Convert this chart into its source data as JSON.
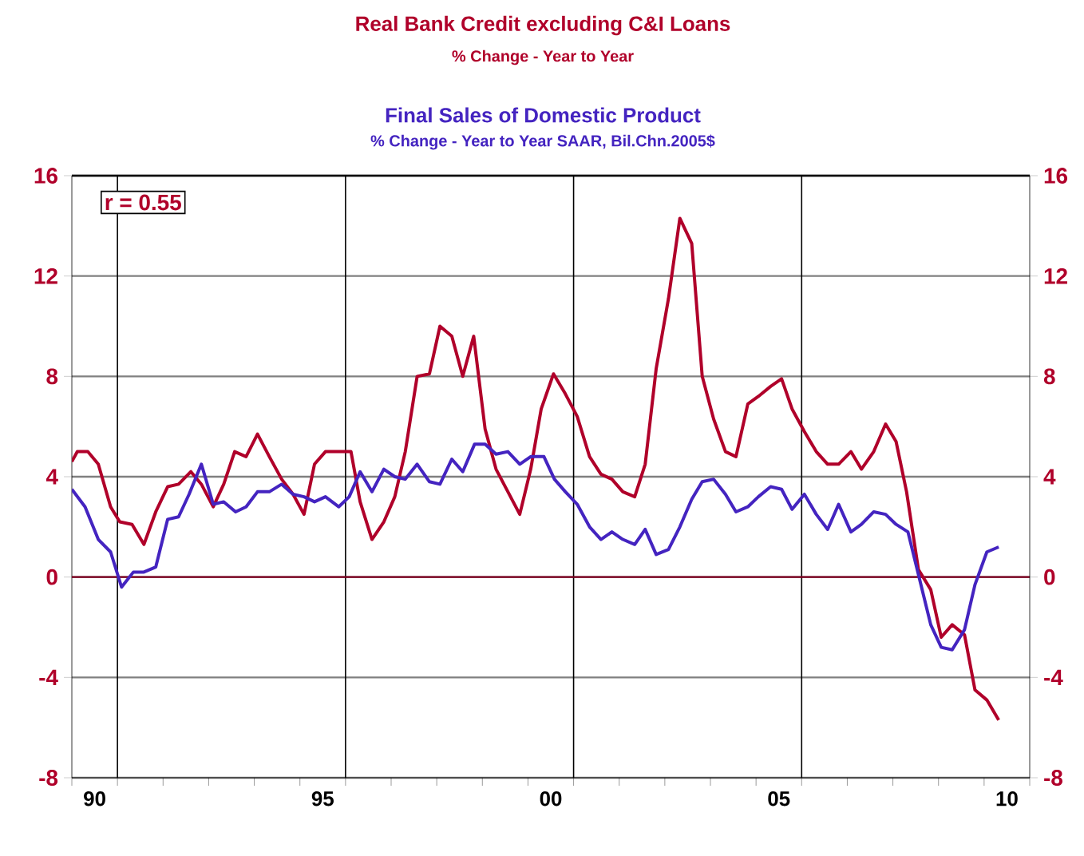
{
  "chart_data": {
    "type": "line",
    "series": [
      {
        "name": "Real Bank Credit excluding C&I Loans",
        "color": "#b0002a",
        "x": [
          1989.5,
          1989.62,
          1989.85,
          1990.08,
          1990.35,
          1990.55,
          1990.82,
          1991.08,
          1991.34,
          1991.6,
          1991.84,
          1992.11,
          1992.34,
          1992.6,
          1992.83,
          1993.07,
          1993.32,
          1993.57,
          1993.83,
          1994.1,
          1994.35,
          1994.59,
          1994.82,
          1995.06,
          1995.35,
          1995.62,
          1995.82,
          1996.08,
          1996.34,
          1996.58,
          1996.81,
          1997.07,
          1997.34,
          1997.57,
          1997.83,
          1998.07,
          1998.31,
          1998.56,
          1998.8,
          1999.06,
          1999.32,
          1999.56,
          1999.79,
          2000.06,
          2000.32,
          2000.58,
          2000.85,
          2001.1,
          2001.34,
          2001.58,
          2001.84,
          2002.07,
          2002.31,
          2002.58,
          2002.83,
          2003.09,
          2003.32,
          2003.57,
          2003.83,
          2004.06,
          2004.32,
          2004.55,
          2004.82,
          2005.06,
          2005.29,
          2005.56,
          2005.82,
          2006.07,
          2006.31,
          2006.58,
          2006.81,
          2007.08,
          2007.34,
          2007.57,
          2007.8,
          2008.06,
          2008.33,
          2008.56,
          2008.8,
          2009.07,
          2009.3,
          2009.56,
          2009.82
        ],
        "values": [
          4.6,
          5.0,
          5.0,
          4.5,
          2.8,
          2.2,
          2.1,
          1.3,
          2.6,
          3.6,
          3.7,
          4.2,
          3.7,
          2.8,
          3.7,
          5.0,
          4.8,
          5.7,
          4.8,
          3.9,
          3.3,
          2.5,
          4.5,
          5.0,
          5.0,
          5.0,
          3.0,
          1.5,
          2.2,
          3.2,
          5.0,
          8.0,
          8.1,
          10.0,
          9.6,
          8.0,
          9.6,
          5.9,
          4.3,
          3.4,
          2.5,
          4.3,
          6.7,
          8.1,
          7.3,
          6.4,
          4.8,
          4.1,
          3.9,
          3.4,
          3.2,
          4.5,
          8.3,
          11.1,
          14.3,
          13.3,
          8.0,
          6.3,
          5.0,
          4.8,
          6.9,
          7.2,
          7.6,
          7.9,
          6.7,
          5.8,
          5.0,
          4.5,
          4.5,
          5.0,
          4.3,
          5.0,
          6.1,
          5.4,
          3.4,
          0.3,
          -0.5,
          -2.4,
          -1.9,
          -2.3,
          -4.5,
          -4.9,
          -5.7
        ]
      },
      {
        "name": "Final Sales of Domestic Product",
        "color": "#4424c0",
        "x": [
          1989.5,
          1989.79,
          1990.08,
          1990.35,
          1990.59,
          1990.85,
          1991.08,
          1991.34,
          1991.6,
          1991.84,
          1992.07,
          1992.34,
          1992.6,
          1992.83,
          1993.09,
          1993.32,
          1993.57,
          1993.83,
          1994.1,
          1994.35,
          1994.59,
          1994.82,
          1995.06,
          1995.35,
          1995.58,
          1995.82,
          1996.08,
          1996.34,
          1996.58,
          1996.81,
          1997.07,
          1997.34,
          1997.57,
          1997.83,
          1998.07,
          1998.33,
          1998.56,
          1998.8,
          1999.06,
          1999.32,
          1999.56,
          1999.85,
          2000.08,
          2000.32,
          2000.58,
          2000.85,
          2001.1,
          2001.34,
          2001.58,
          2001.84,
          2002.07,
          2002.31,
          2002.58,
          2002.83,
          2003.09,
          2003.32,
          2003.57,
          2003.83,
          2004.06,
          2004.32,
          2004.55,
          2004.82,
          2005.06,
          2005.29,
          2005.56,
          2005.82,
          2006.07,
          2006.31,
          2006.58,
          2006.81,
          2007.08,
          2007.34,
          2007.57,
          2007.83,
          2008.06,
          2008.33,
          2008.56,
          2008.8,
          2009.07,
          2009.3,
          2009.56,
          2009.82
        ],
        "values": [
          3.5,
          2.8,
          1.5,
          1.0,
          -0.4,
          0.2,
          0.2,
          0.4,
          2.3,
          2.4,
          3.3,
          4.5,
          2.9,
          3.0,
          2.6,
          2.8,
          3.4,
          3.4,
          3.7,
          3.3,
          3.2,
          3.0,
          3.2,
          2.8,
          3.2,
          4.2,
          3.4,
          4.3,
          4.0,
          3.9,
          4.5,
          3.8,
          3.7,
          4.7,
          4.2,
          5.3,
          5.3,
          4.9,
          5.0,
          4.5,
          4.8,
          4.8,
          3.9,
          3.4,
          2.9,
          2.0,
          1.5,
          1.8,
          1.5,
          1.3,
          1.9,
          0.9,
          1.1,
          2.0,
          3.1,
          3.8,
          3.9,
          3.3,
          2.6,
          2.8,
          3.2,
          3.6,
          3.5,
          2.7,
          3.3,
          2.5,
          1.9,
          2.9,
          1.8,
          2.1,
          2.6,
          2.5,
          2.1,
          1.8,
          0.1,
          -1.9,
          -2.8,
          -2.9,
          -2.1,
          -0.3,
          1.0,
          1.2
        ]
      }
    ],
    "annotations": [
      "% Change - Year to Year",
      "% Change - Year to Year     SAAR, Bil.Chn.2005$",
      "r = 0.55"
    ],
    "xlim": [
      1989.5,
      2010.5
    ],
    "xticks": [
      {
        "value": 1990,
        "label": "90"
      },
      {
        "value": 1995,
        "label": "95"
      },
      {
        "value": 2000,
        "label": "00"
      },
      {
        "value": 2005,
        "label": "05"
      },
      {
        "value": 2010,
        "label": "10"
      },
      {
        "value": 1989.5,
        "label": null
      },
      {
        "value": 1990.5,
        "label": null
      },
      {
        "value": 1991.5,
        "label": null
      },
      {
        "value": 1992.5,
        "label": null
      },
      {
        "value": 1993.5,
        "label": null
      },
      {
        "value": 1994.5,
        "label": null
      },
      {
        "value": 1995.5,
        "label": null
      },
      {
        "value": 1996.5,
        "label": null
      },
      {
        "value": 1997.5,
        "label": null
      },
      {
        "value": 1998.5,
        "label": null
      },
      {
        "value": 1999.5,
        "label": null
      },
      {
        "value": 2000.5,
        "label": null
      },
      {
        "value": 2001.5,
        "label": null
      },
      {
        "value": 2002.5,
        "label": null
      },
      {
        "value": 2003.5,
        "label": null
      },
      {
        "value": 2004.5,
        "label": null
      },
      {
        "value": 2005.5,
        "label": null
      },
      {
        "value": 2006.5,
        "label": null
      },
      {
        "value": 2007.5,
        "label": null
      },
      {
        "value": 2008.5,
        "label": null
      },
      {
        "value": 2009.5,
        "label": null
      },
      {
        "value": 2010.5,
        "label": null
      }
    ],
    "ylim": [
      -8,
      16
    ],
    "yticks": [
      -8,
      -4,
      0,
      4,
      8,
      12,
      16
    ],
    "y2lim": [
      -8,
      16
    ],
    "y2ticks": [
      -8,
      -4,
      0,
      4,
      8,
      12,
      16
    ],
    "grid": "y",
    "marker": "none",
    "line_style": "solid",
    "ref_lines": [
      {
        "axis": "x",
        "value": 1990.5,
        "color": "#000000"
      },
      {
        "axis": "x",
        "value": 1995.5,
        "color": "#000000"
      },
      {
        "axis": "x",
        "value": 2000.5,
        "color": "#000000"
      },
      {
        "axis": "x",
        "value": 2005.5,
        "color": "#000000"
      },
      {
        "axis": "y",
        "value": 0,
        "color": "#800020"
      }
    ]
  }
}
